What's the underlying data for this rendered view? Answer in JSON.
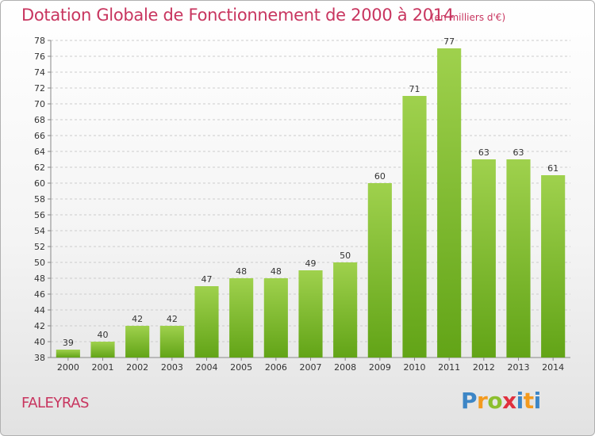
{
  "header": {
    "title": "Dotation Globale de Fonctionnement de 2000 à 2014",
    "unit_note": "(en milliers d'€)"
  },
  "footer": {
    "commune": "FALEYRAS",
    "logo_text": "Proxiti"
  },
  "colors": {
    "title": "#c8355f",
    "bar_light": "#9fd14d",
    "bar_dark": "#62a417",
    "grid": "#cccccc"
  },
  "chart_data": {
    "type": "bar",
    "title": "Dotation Globale de Fonctionnement de 2000 à 2014",
    "subtitle": "(en milliers d'€)",
    "xlabel": "",
    "ylabel": "",
    "categories": [
      "2000",
      "2001",
      "2002",
      "2003",
      "2004",
      "2005",
      "2006",
      "2007",
      "2008",
      "2009",
      "2010",
      "2011",
      "2012",
      "2013",
      "2014"
    ],
    "values": [
      39,
      40,
      42,
      42,
      47,
      48,
      48,
      49,
      50,
      60,
      71,
      77,
      63,
      63,
      61
    ],
    "ylim": [
      38,
      78
    ],
    "ytick_step": 2,
    "grid": "horizontal-dashed",
    "legend": "none"
  }
}
